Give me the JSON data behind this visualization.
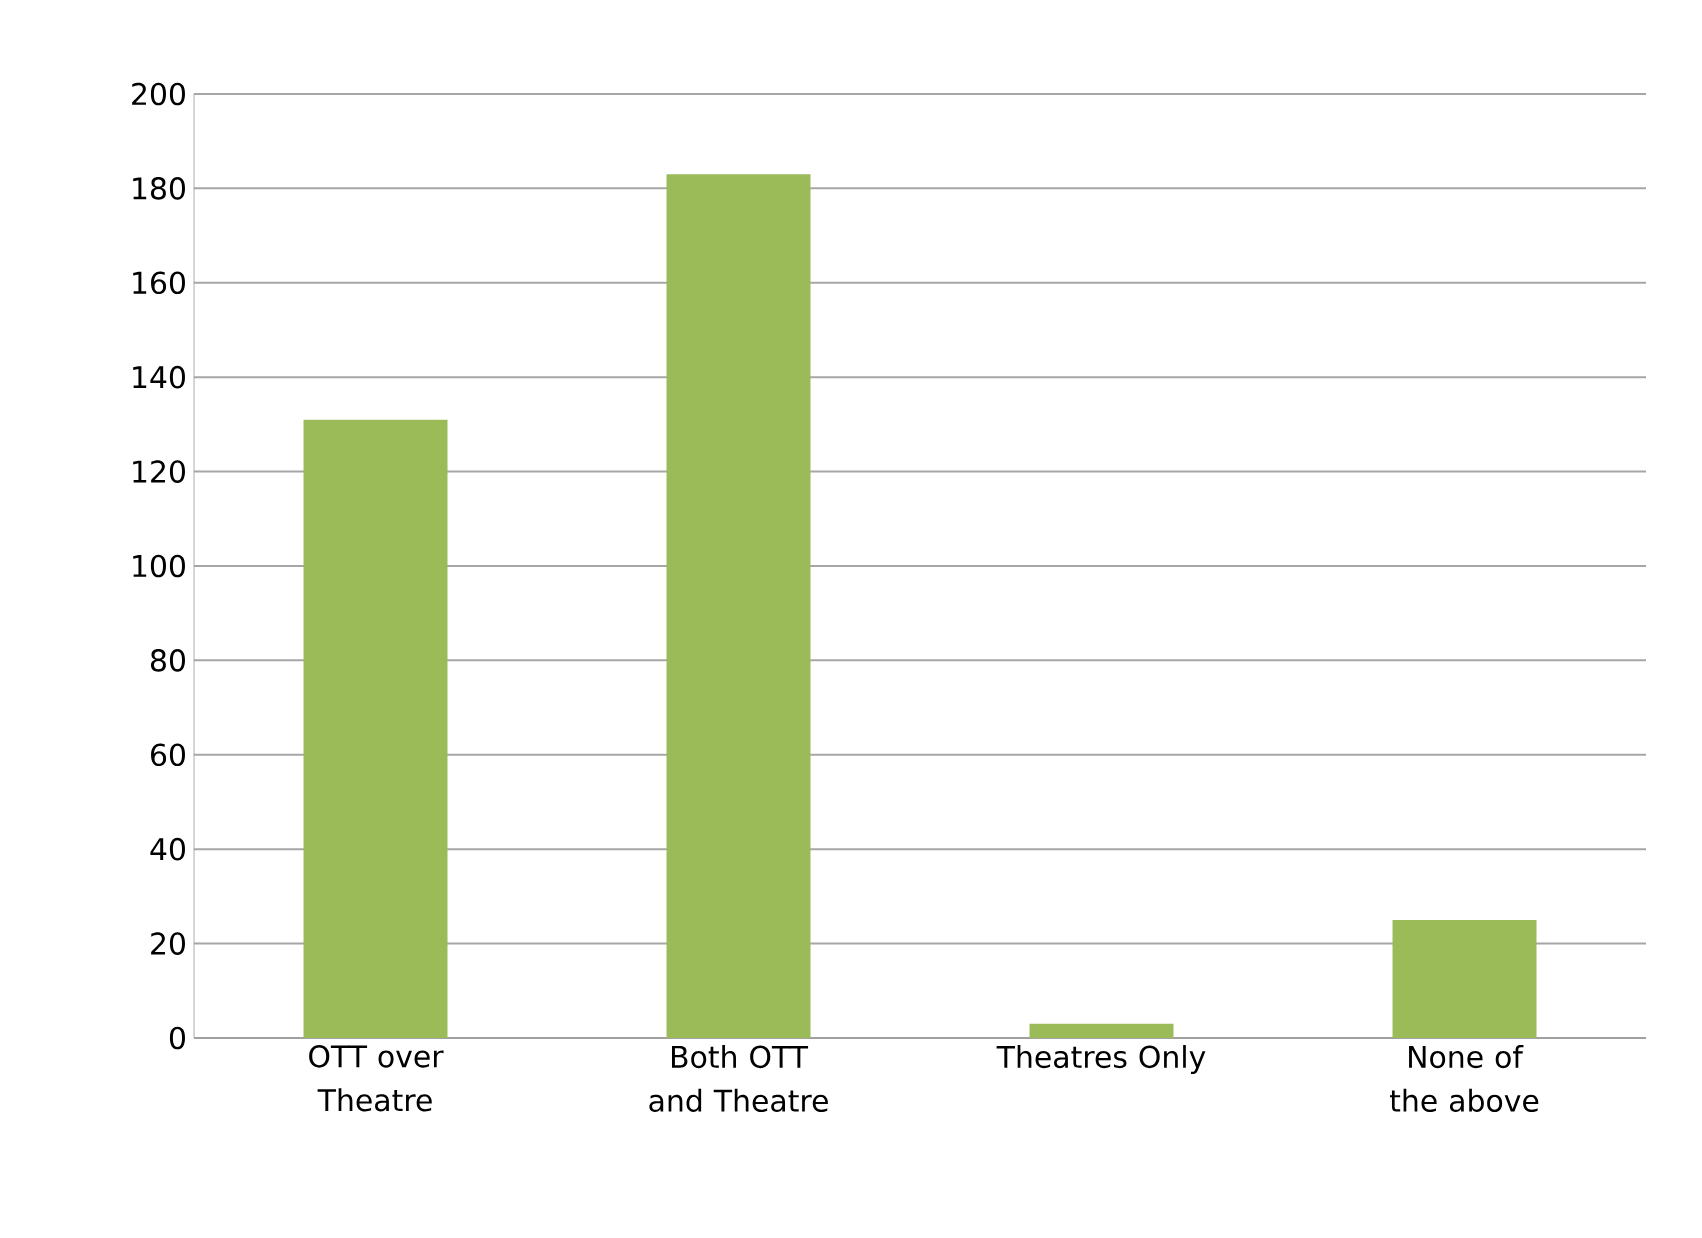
{
  "chart_data": {
    "type": "bar",
    "categories": [
      "OTT over Theatre",
      "Both OTT and Theatre",
      "Theatres Only",
      "None of the above"
    ],
    "values": [
      131,
      183,
      3,
      25
    ],
    "color": "#9bbb59",
    "ylim": [
      0,
      200
    ],
    "yticks": [
      0,
      20,
      40,
      60,
      80,
      100,
      120,
      140,
      160,
      180,
      200
    ],
    "grid": "y"
  }
}
